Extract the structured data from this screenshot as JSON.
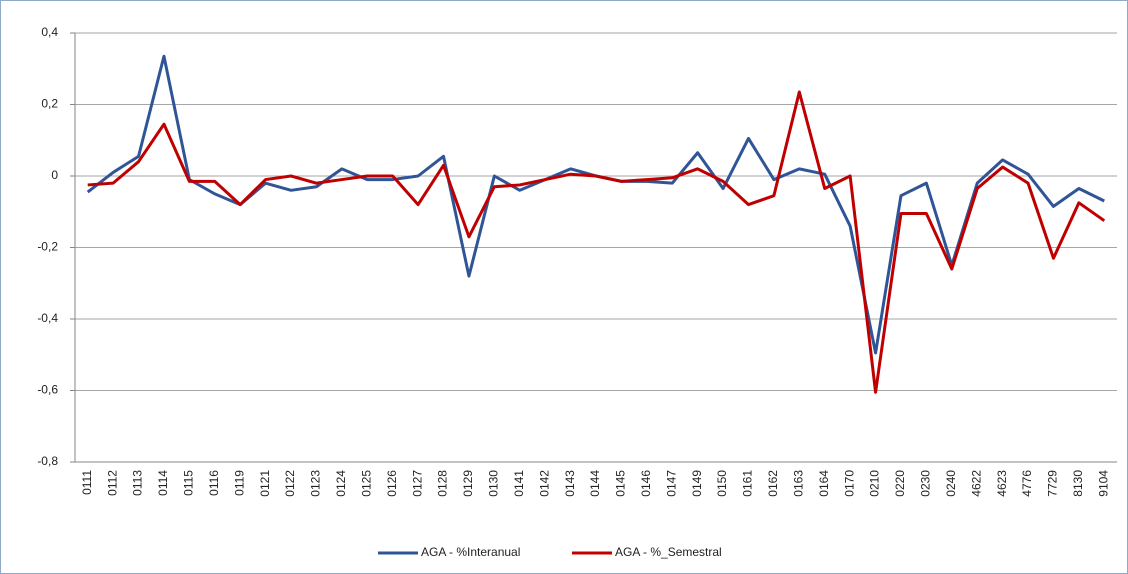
{
  "chart_data": {
    "type": "line",
    "categories": [
      "0111",
      "0112",
      "0113",
      "0114",
      "0115",
      "0116",
      "0119",
      "0121",
      "0122",
      "0123",
      "0124",
      "0125",
      "0126",
      "0127",
      "0128",
      "0129",
      "0130",
      "0141",
      "0142",
      "0143",
      "0144",
      "0145",
      "0146",
      "0147",
      "0149",
      "0150",
      "0161",
      "0162",
      "0163",
      "0164",
      "0170",
      "0210",
      "0220",
      "0230",
      "0240",
      "4622",
      "4623",
      "4776",
      "7729",
      "8130",
      "9104"
    ],
    "series": [
      {
        "name": "AGA - %Interanual",
        "color": "#2f5597",
        "values": [
          -0.045,
          0.01,
          0.055,
          0.335,
          -0.01,
          -0.05,
          -0.08,
          -0.02,
          -0.04,
          -0.03,
          0.02,
          -0.01,
          -0.01,
          0,
          0.055,
          -0.28,
          0,
          -0.04,
          -0.01,
          0.02,
          0,
          -0.015,
          -0.015,
          -0.02,
          0.065,
          -0.035,
          0.105,
          -0.01,
          0.02,
          0.005,
          -0.14,
          -0.495,
          -0.055,
          -0.02,
          -0.25,
          -0.02,
          0.045,
          0.005,
          -0.085,
          -0.035,
          -0.07
        ]
      },
      {
        "name": "AGA - %_Semestral",
        "color": "#c00000",
        "values": [
          -0.025,
          -0.02,
          0.04,
          0.145,
          -0.015,
          -0.015,
          -0.08,
          -0.01,
          0,
          -0.02,
          -0.01,
          0,
          0,
          -0.08,
          0.03,
          -0.17,
          -0.03,
          -0.025,
          -0.01,
          0.005,
          0,
          -0.015,
          -0.01,
          -0.005,
          0.02,
          -0.015,
          -0.08,
          -0.055,
          0.235,
          -0.035,
          0,
          -0.605,
          -0.105,
          -0.105,
          -0.26,
          -0.035,
          0.025,
          -0.02,
          -0.23,
          -0.075,
          -0.125
        ]
      }
    ],
    "ylim": [
      -0.8,
      0.4
    ],
    "yticks": [
      {
        "value": -0.8,
        "label": "-0,8"
      },
      {
        "value": -0.6,
        "label": "-0,6"
      },
      {
        "value": -0.4,
        "label": "-0,4"
      },
      {
        "value": -0.2,
        "label": "-0,2"
      },
      0,
      {
        "value": 0.2,
        "label": "0,2"
      },
      {
        "value": 0.4,
        "label": "0,4"
      }
    ],
    "grid": true,
    "legend": "bottom"
  }
}
